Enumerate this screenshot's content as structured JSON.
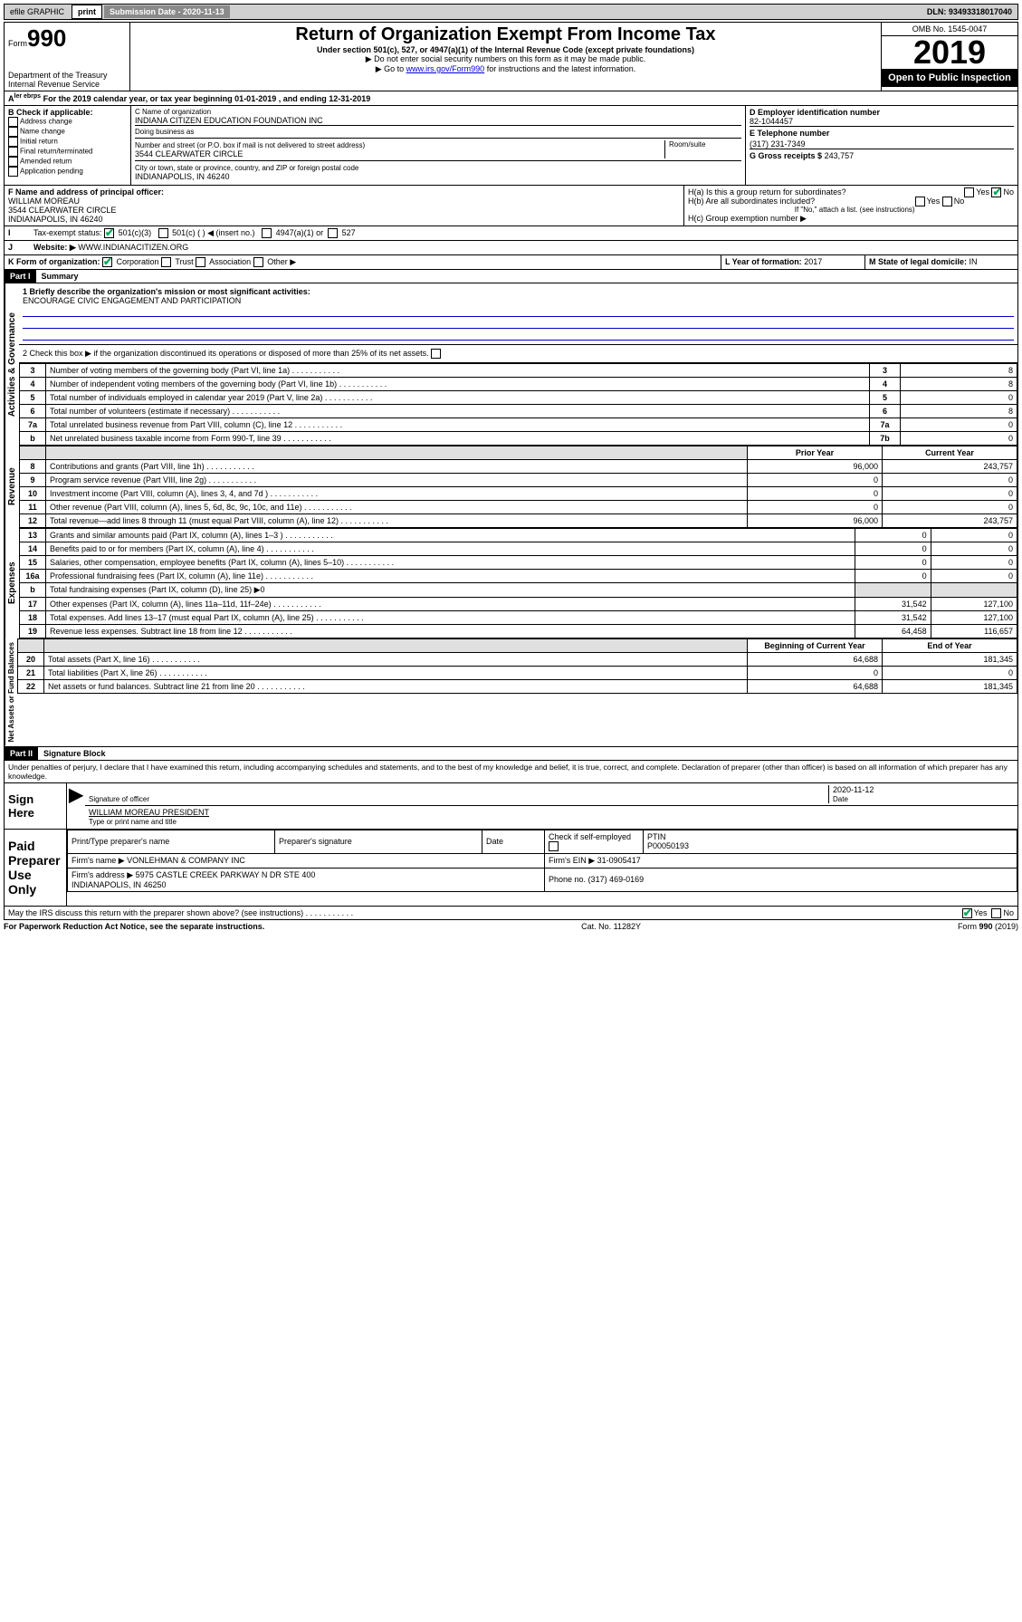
{
  "top": {
    "efile": "efile GRAPHIC",
    "print": "print",
    "subdate_label": "Submission Date - 2020-11-13",
    "dln": "DLN: 93493318017040"
  },
  "header": {
    "form_prefix": "Form",
    "form_num": "990",
    "dept": "Department of the Treasury",
    "irs": "Internal Revenue Service",
    "title": "Return of Organization Exempt From Income Tax",
    "subtitle": "Under section 501(c), 527, or 4947(a)(1) of the Internal Revenue Code (except private foundations)",
    "note1": "▶ Do not enter social security numbers on this form as it may be made public.",
    "note2_pre": "▶ Go to ",
    "note2_link": "www.irs.gov/Form990",
    "note2_post": " for instructions and the latest information.",
    "omb": "OMB No. 1545-0047",
    "year": "2019",
    "open": "Open to Public Inspection"
  },
  "a_row": "For the 2019 calendar year, or tax year beginning 01-01-2019    , and ending 12-31-2019",
  "b": {
    "label": "B Check if applicable:",
    "addr": "Address change",
    "name": "Name change",
    "initial": "Initial return",
    "final": "Final return/terminated",
    "amended": "Amended return",
    "app": "Application pending"
  },
  "c": {
    "name_label": "C Name of organization",
    "name": "INDIANA CITIZEN EDUCATION FOUNDATION INC",
    "dba_label": "Doing business as",
    "street_label": "Number and street (or P.O. box if mail is not delivered to street address)",
    "room_label": "Room/suite",
    "street": "3544 CLEARWATER CIRCLE",
    "city_label": "City or town, state or province, country, and ZIP or foreign postal code",
    "city": "INDIANAPOLIS, IN  46240"
  },
  "d": {
    "label": "D Employer identification number",
    "val": "82-1044457"
  },
  "e": {
    "label": "E Telephone number",
    "val": "(317) 231-7349"
  },
  "g": {
    "label": "G Gross receipts $",
    "val": "243,757"
  },
  "f": {
    "label": "F  Name and address of principal officer:",
    "name": "WILLIAM MOREAU",
    "addr1": "3544 CLEARWATER CIRCLE",
    "addr2": "INDIANAPOLIS, IN  46240"
  },
  "h": {
    "a": "H(a)  Is this a group return for subordinates?",
    "b": "H(b)  Are all subordinates included?",
    "b_note": "If \"No,\" attach a list. (see instructions)",
    "c": "H(c)  Group exemption number ▶",
    "yes": "Yes",
    "no": "No"
  },
  "i": {
    "label": "Tax-exempt status:",
    "c3": "501(c)(3)",
    "c": "501(c) (   ) ◀ (insert no.)",
    "a1": "4947(a)(1) or",
    "527": "527"
  },
  "j": {
    "label": "Website: ▶",
    "val": "WWW.INDIANACITIZEN.ORG"
  },
  "k": {
    "label": "K Form of organization:",
    "corp": "Corporation",
    "trust": "Trust",
    "assoc": "Association",
    "other": "Other ▶"
  },
  "l": {
    "label": "L Year of formation:",
    "val": "2017"
  },
  "m": {
    "label": "M State of legal domicile:",
    "val": "IN"
  },
  "part1": {
    "label": "Part I",
    "title": "Summary"
  },
  "p1_1_label": "1  Briefly describe the organization's mission or most significant activities:",
  "p1_1_val": "ENCOURAGE CIVIC ENGAGEMENT AND PARTICIPATION",
  "p1_2": "2    Check this box ▶         if the organization discontinued its operations or disposed of more than 25% of its net assets.",
  "lines_ag": [
    {
      "n": "3",
      "t": "Number of voting members of the governing body (Part VI, line 1a)",
      "b": "3",
      "v": "8"
    },
    {
      "n": "4",
      "t": "Number of independent voting members of the governing body (Part VI, line 1b)",
      "b": "4",
      "v": "8"
    },
    {
      "n": "5",
      "t": "Total number of individuals employed in calendar year 2019 (Part V, line 2a)",
      "b": "5",
      "v": "0"
    },
    {
      "n": "6",
      "t": "Total number of volunteers (estimate if necessary)",
      "b": "6",
      "v": "8"
    },
    {
      "n": "7a",
      "t": "Total unrelated business revenue from Part VIII, column (C), line 12",
      "b": "7a",
      "v": "0"
    },
    {
      "n": "b",
      "t": "Net unrelated business taxable income from Form 990-T, line 39",
      "b": "7b",
      "v": "0"
    }
  ],
  "col_headers": {
    "prior": "Prior Year",
    "current": "Current Year",
    "boy": "Beginning of Current Year",
    "eoy": "End of Year"
  },
  "revenue": [
    {
      "n": "8",
      "t": "Contributions and grants (Part VIII, line 1h)",
      "p": "96,000",
      "c": "243,757"
    },
    {
      "n": "9",
      "t": "Program service revenue (Part VIII, line 2g)",
      "p": "0",
      "c": "0"
    },
    {
      "n": "10",
      "t": "Investment income (Part VIII, column (A), lines 3, 4, and 7d )",
      "p": "0",
      "c": "0"
    },
    {
      "n": "11",
      "t": "Other revenue (Part VIII, column (A), lines 5, 6d, 8c, 9c, 10c, and 11e)",
      "p": "0",
      "c": "0"
    },
    {
      "n": "12",
      "t": "Total revenue—add lines 8 through 11 (must equal Part VIII, column (A), line 12)",
      "p": "96,000",
      "c": "243,757"
    }
  ],
  "expenses": [
    {
      "n": "13",
      "t": "Grants and similar amounts paid (Part IX, column (A), lines 1–3 )",
      "p": "0",
      "c": "0"
    },
    {
      "n": "14",
      "t": "Benefits paid to or for members (Part IX, column (A), line 4)",
      "p": "0",
      "c": "0"
    },
    {
      "n": "15",
      "t": "Salaries, other compensation, employee benefits (Part IX, column (A), lines 5–10)",
      "p": "0",
      "c": "0"
    },
    {
      "n": "16a",
      "t": "Professional fundraising fees (Part IX, column (A), line 11e)",
      "p": "0",
      "c": "0"
    },
    {
      "n": "b",
      "t": "Total fundraising expenses (Part IX, column (D), line 25) ▶0",
      "p": "",
      "c": "",
      "shade": true
    },
    {
      "n": "17",
      "t": "Other expenses (Part IX, column (A), lines 11a–11d, 11f–24e)",
      "p": "31,542",
      "c": "127,100"
    },
    {
      "n": "18",
      "t": "Total expenses. Add lines 13–17 (must equal Part IX, column (A), line 25)",
      "p": "31,542",
      "c": "127,100"
    },
    {
      "n": "19",
      "t": "Revenue less expenses. Subtract line 18 from line 12",
      "p": "64,458",
      "c": "116,657"
    }
  ],
  "netassets": [
    {
      "n": "20",
      "t": "Total assets (Part X, line 16)",
      "p": "64,688",
      "c": "181,345"
    },
    {
      "n": "21",
      "t": "Total liabilities (Part X, line 26)",
      "p": "0",
      "c": "0"
    },
    {
      "n": "22",
      "t": "Net assets or fund balances. Subtract line 21 from line 20",
      "p": "64,688",
      "c": "181,345"
    }
  ],
  "section_labels": {
    "ag": "Activities & Governance",
    "rev": "Revenue",
    "exp": "Expenses",
    "na": "Net Assets or Fund Balances"
  },
  "part2": {
    "label": "Part II",
    "title": "Signature Block"
  },
  "perjury": "Under penalties of perjury, I declare that I have examined this return, including accompanying schedules and statements, and to the best of my knowledge and belief, it is true, correct, and complete. Declaration of preparer (other than officer) is based on all information of which preparer has any knowledge.",
  "sign": {
    "here": "Sign Here",
    "sig_label": "Signature of officer",
    "date_label": "Date",
    "date_val": "2020-11-12",
    "name_val": "WILLIAM MOREAU  PRESIDENT",
    "name_label": "Type or print name and title"
  },
  "paid": {
    "title": "Paid Preparer Use Only",
    "h1": "Print/Type preparer's name",
    "h2": "Preparer's signature",
    "h3": "Date",
    "h4_check": "Check          if self-employed",
    "h5": "PTIN",
    "ptin": "P00050193",
    "firm_name_label": "Firm's name      ▶",
    "firm_name": "VONLEHMAN & COMPANY INC",
    "firm_ein_label": "Firm's EIN ▶",
    "firm_ein": "31-0905417",
    "firm_addr_label": "Firm's address ▶",
    "firm_addr": "5975 CASTLE CREEK PARKWAY N DR STE 400\nINDIANAPOLIS, IN  46250",
    "phone_label": "Phone no.",
    "phone": "(317) 469-0169"
  },
  "discuss": "May the IRS discuss this return with the preparer shown above? (see instructions)",
  "footer": {
    "pra": "For Paperwork Reduction Act Notice, see the separate instructions.",
    "cat": "Cat. No. 11282Y",
    "form": "Form 990 (2019)"
  }
}
